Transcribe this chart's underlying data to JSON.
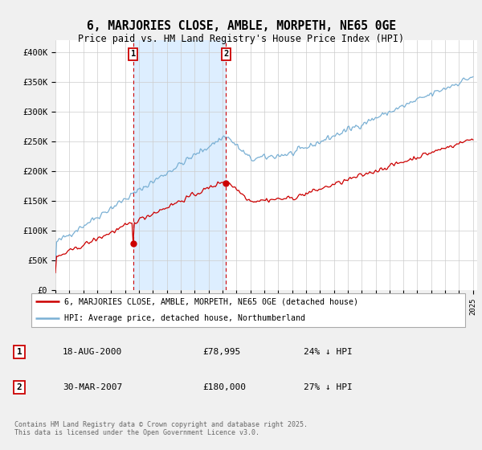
{
  "title": "6, MARJORIES CLOSE, AMBLE, MORPETH, NE65 0GE",
  "subtitle": "Price paid vs. HM Land Registry's House Price Index (HPI)",
  "ylim": [
    0,
    420000
  ],
  "yticks": [
    0,
    50000,
    100000,
    150000,
    200000,
    250000,
    300000,
    350000,
    400000
  ],
  "ytick_labels": [
    "£0",
    "£50K",
    "£100K",
    "£150K",
    "£200K",
    "£250K",
    "£300K",
    "£350K",
    "£400K"
  ],
  "background_color": "#f0f0f0",
  "plot_bg_color": "#ffffff",
  "grid_color": "#cccccc",
  "red_color": "#cc0000",
  "blue_color": "#7ab0d4",
  "shade_color": "#ddeeff",
  "marker1_year": 2000.62,
  "marker2_year": 2007.24,
  "marker1_date": "18-AUG-2000",
  "marker1_price": "£78,995",
  "marker1_hpi": "24% ↓ HPI",
  "marker2_date": "30-MAR-2007",
  "marker2_price": "£180,000",
  "marker2_hpi": "27% ↓ HPI",
  "legend_red_label": "6, MARJORIES CLOSE, AMBLE, MORPETH, NE65 0GE (detached house)",
  "legend_blue_label": "HPI: Average price, detached house, Northumberland",
  "footer": "Contains HM Land Registry data © Crown copyright and database right 2025.\nThis data is licensed under the Open Government Licence v3.0.",
  "x_start_year": 1995,
  "x_end_year": 2025
}
